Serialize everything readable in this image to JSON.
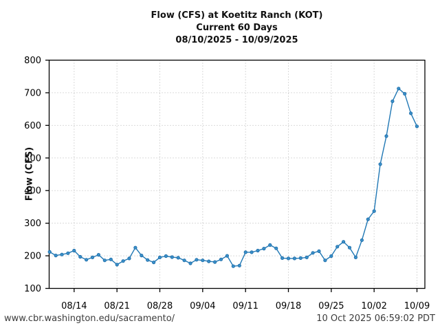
{
  "header": {
    "title": "Flow (CFS) at Koetitz Ranch (KOT)",
    "subtitle": "Current 60 Days",
    "date_range": "08/10/2025 - 10/09/2025"
  },
  "footer": {
    "url": "www.cbr.washington.edu/sacramento/",
    "timestamp": "10 Oct 2025 06:59:02 PDT"
  },
  "chart_data": {
    "type": "line",
    "title": "Flow (CFS) at Koetitz Ranch (KOT)",
    "subtitle": "Current 60 Days",
    "date_range": "08/10/2025 - 10/09/2025",
    "ylabel": "Flow (CFS)",
    "ylim": [
      100,
      800
    ],
    "y_ticks": [
      100,
      200,
      300,
      400,
      500,
      600,
      700,
      800
    ],
    "x_tick_labels": [
      "08/14",
      "08/21",
      "08/28",
      "09/04",
      "09/11",
      "09/18",
      "09/25",
      "10/02",
      "10/09"
    ],
    "x_tick_first_index": 4,
    "x_tick_step": 7,
    "grid": "dotted",
    "legend_position": "none",
    "line_color": "#1f77b4",
    "marker_fill": "#3a8fc7",
    "marker_edge": "#1b6aa8",
    "x": [
      "08/10",
      "08/11",
      "08/12",
      "08/13",
      "08/14",
      "08/15",
      "08/16",
      "08/17",
      "08/18",
      "08/19",
      "08/20",
      "08/21",
      "08/22",
      "08/23",
      "08/24",
      "08/25",
      "08/26",
      "08/27",
      "08/28",
      "08/29",
      "08/30",
      "08/31",
      "09/01",
      "09/02",
      "09/03",
      "09/04",
      "09/05",
      "09/06",
      "09/07",
      "09/08",
      "09/09",
      "09/10",
      "09/11",
      "09/12",
      "09/13",
      "09/14",
      "09/15",
      "09/16",
      "09/17",
      "09/18",
      "09/19",
      "09/20",
      "09/21",
      "09/22",
      "09/23",
      "09/24",
      "09/25",
      "09/26",
      "09/27",
      "09/28",
      "09/29",
      "09/30",
      "10/01",
      "10/02",
      "10/03",
      "10/04",
      "10/05",
      "10/06",
      "10/07",
      "10/08",
      "10/09"
    ],
    "series": [
      {
        "name": "Flow (CFS)",
        "values": [
          212,
          201,
          204,
          208,
          216,
          197,
          188,
          195,
          203,
          186,
          189,
          173,
          184,
          192,
          225,
          201,
          187,
          180,
          195,
          199,
          196,
          194,
          186,
          177,
          188,
          186,
          183,
          181,
          189,
          200,
          168,
          170,
          211,
          211,
          216,
          222,
          233,
          223,
          193,
          192,
          192,
          193,
          195,
          209,
          214,
          186,
          199,
          228,
          243,
          225,
          195,
          248,
          312,
          337,
          481,
          567,
          674,
          713,
          697,
          637,
          597
        ]
      }
    ]
  }
}
